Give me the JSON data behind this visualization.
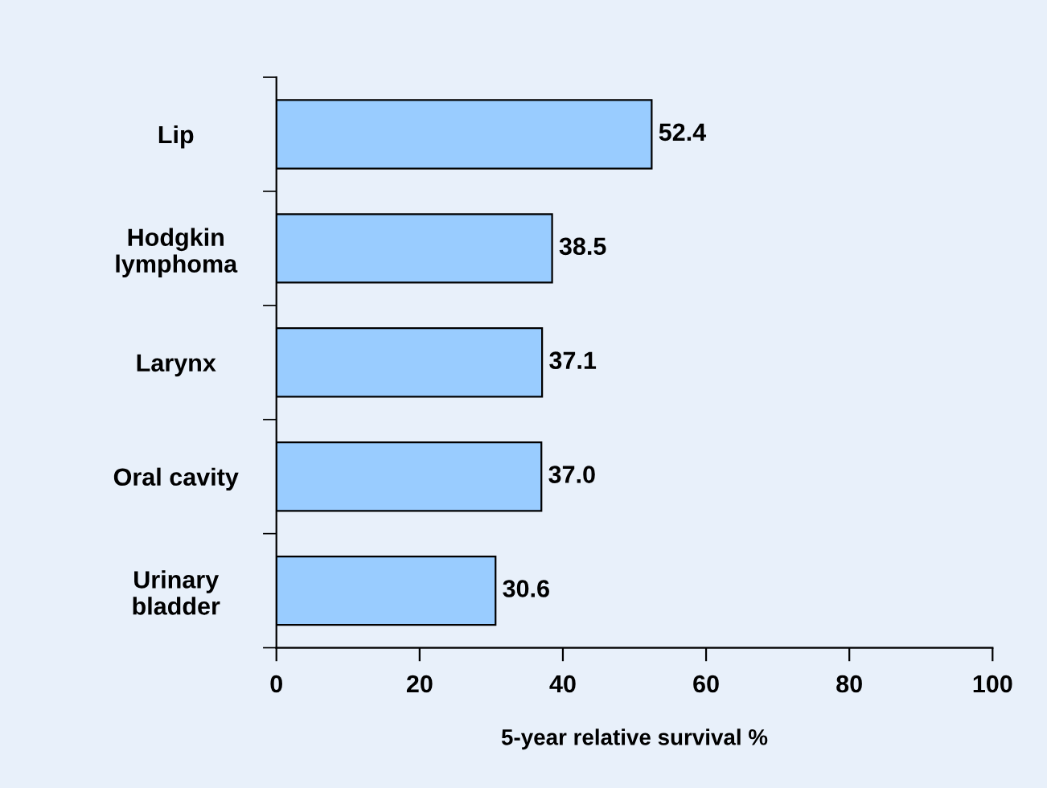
{
  "chart_data": {
    "type": "bar",
    "orientation": "horizontal",
    "categories": [
      "Lip",
      "Hodgkin\nlymphoma",
      "Larynx",
      "Oral cavity",
      "Urinary\nbladder"
    ],
    "values": [
      52.4,
      38.5,
      37.1,
      37.0,
      30.6
    ],
    "color": "#99ccff",
    "xlabel": "5-year relative survival %",
    "xlim": [
      0,
      100
    ],
    "xticks": [
      0,
      20,
      40,
      60,
      80,
      100
    ],
    "grid": false,
    "value_labels": [
      "52.4",
      "38.5",
      "37.1",
      "37.0",
      "30.6"
    ]
  }
}
